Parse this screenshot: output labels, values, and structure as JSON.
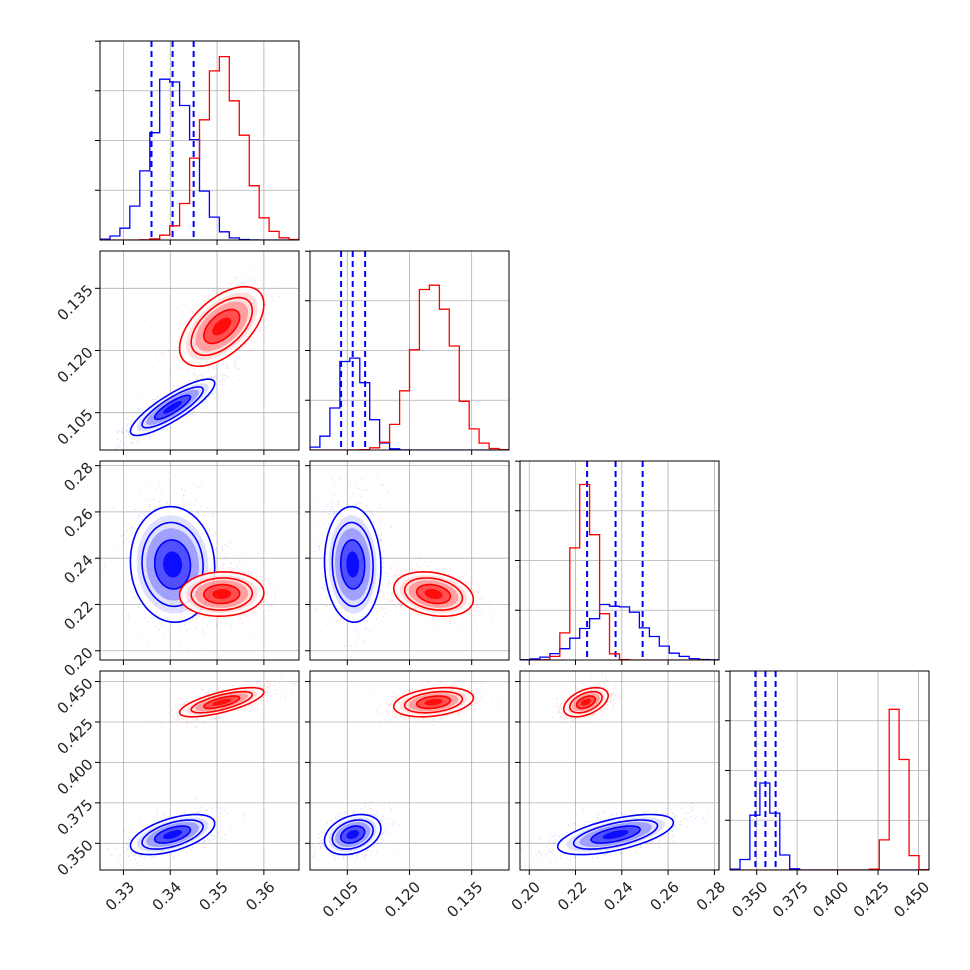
{
  "chart_data": {
    "type": "corner",
    "params": [
      {
        "ticks": [
          "0.33",
          "0.34",
          "0.35",
          "0.36"
        ],
        "range": [
          0.325,
          0.3675
        ]
      },
      {
        "ticks": [
          "0.105",
          "0.120",
          "0.135"
        ],
        "range": [
          0.096,
          0.144
        ]
      },
      {
        "ticks": [
          "0.20",
          "0.22",
          "0.24",
          "0.26",
          "0.28"
        ],
        "range": [
          0.196,
          0.282
        ]
      },
      {
        "ticks": [
          "0.350",
          "0.375",
          "0.400",
          "0.425",
          "0.450"
        ],
        "range": [
          0.3335,
          0.4565
        ]
      }
    ],
    "grid": true,
    "colors": {
      "series_a": "#0000ff",
      "series_b": "#ff0000",
      "axes": "#000000",
      "grid": "#b0b0b0"
    },
    "series": [
      {
        "color": "#0000ff",
        "means": [
          0.3405,
          0.1063,
          0.2373,
          0.3554
        ],
        "sigmas": [
          0.0045,
          0.0034,
          0.0125,
          0.0062
        ],
        "pair_correlations": {
          "1-0": 0.85,
          "2-0": -0.05,
          "2-1": -0.05,
          "3-0": 0.55,
          "3-1": 0.3,
          "3-2": 0.6
        },
        "quantiles": [
          [
            0.336,
            0.3405,
            0.345
          ],
          [
            0.1035,
            0.1063,
            0.1093
          ],
          [
            0.225,
            0.2373,
            0.249
          ],
          [
            0.3492,
            0.3554,
            0.3617
          ]
        ],
        "hist_peak_fraction": [
          0.87,
          0.52,
          0.3,
          0.48
        ]
      },
      {
        "color": "#ff0000",
        "means": [
          0.351,
          0.1258,
          0.2245,
          0.4372
        ],
        "sigmas": [
          0.0045,
          0.0048,
          0.0048,
          0.0045
        ],
        "pair_correlations": {
          "1-0": 0.55,
          "2-0": 0.05,
          "2-1": -0.25,
          "3-0": 0.7,
          "3-1": 0.3,
          "3-2": 0.45
        },
        "hist_peak_fraction": [
          0.95,
          0.9,
          0.95,
          0.92
        ]
      }
    ]
  }
}
